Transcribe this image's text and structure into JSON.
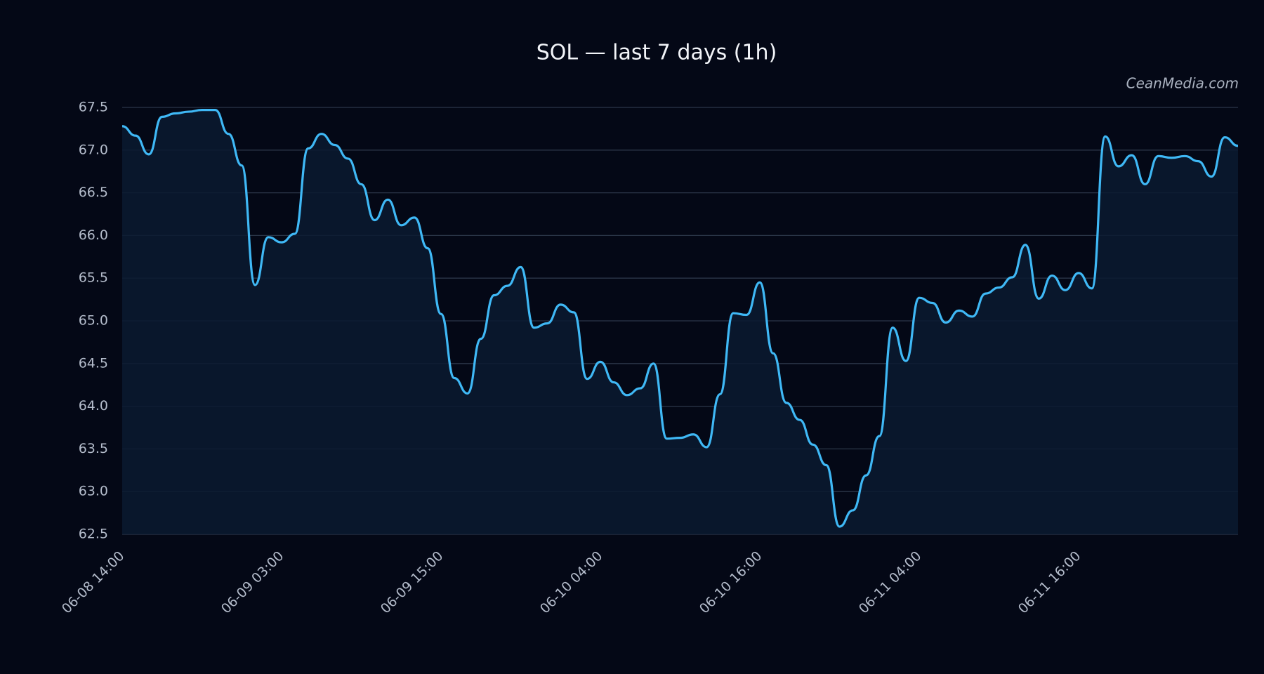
{
  "chart_data": {
    "type": "line",
    "title": "SOL — last 7 days (1h)",
    "watermark": "CeanMedia.com",
    "categories": [
      "06-08 14:00",
      null,
      null,
      null,
      null,
      null,
      null,
      null,
      null,
      null,
      null,
      null,
      "06-09 03:00",
      null,
      null,
      null,
      null,
      null,
      null,
      null,
      null,
      null,
      null,
      null,
      "06-09 15:00",
      null,
      null,
      null,
      null,
      null,
      null,
      null,
      null,
      null,
      null,
      null,
      "06-10 04:00",
      null,
      null,
      null,
      null,
      null,
      null,
      null,
      null,
      null,
      null,
      null,
      "06-10 16:00",
      null,
      null,
      null,
      null,
      null,
      null,
      null,
      null,
      null,
      null,
      null,
      "06-11 04:00",
      null,
      null,
      null,
      null,
      null,
      null,
      null,
      null,
      null,
      null,
      null,
      "06-11 16:00",
      null,
      null,
      null,
      null,
      null,
      null,
      null,
      null,
      null,
      null,
      null,
      null
    ],
    "series": [
      {
        "name": "SOL",
        "color": "#3fb8f5",
        "values": [
          67.28,
          67.17,
          66.95,
          67.39,
          67.43,
          67.45,
          67.47,
          67.47,
          67.19,
          66.82,
          65.42,
          65.98,
          65.92,
          66.02,
          67.02,
          67.19,
          67.06,
          66.9,
          66.6,
          66.18,
          66.42,
          66.12,
          66.21,
          65.85,
          65.08,
          64.33,
          64.15,
          64.79,
          65.3,
          65.41,
          65.63,
          64.92,
          64.97,
          65.19,
          65.1,
          64.32,
          64.52,
          64.28,
          64.13,
          64.21,
          64.5,
          63.62,
          63.63,
          63.67,
          63.52,
          64.14,
          65.09,
          65.07,
          65.45,
          64.62,
          64.04,
          63.84,
          63.55,
          63.31,
          62.59,
          62.78,
          63.19,
          63.65,
          64.92,
          64.53,
          65.27,
          65.21,
          64.98,
          65.12,
          65.05,
          65.32,
          65.39,
          65.51,
          65.89,
          65.26,
          65.53,
          65.36,
          65.56,
          65.38,
          67.16,
          66.81,
          66.94,
          66.6,
          66.93,
          66.91,
          66.93,
          66.87,
          66.69,
          67.15,
          67.05
        ]
      }
    ],
    "ylim": [
      62.5,
      67.5
    ],
    "yticks": [
      62.5,
      {
        "value": 63,
        "label": "63.0"
      },
      63.5,
      {
        "value": 64,
        "label": "64.0"
      },
      64.5,
      {
        "value": 65,
        "label": "65.0"
      },
      65.5,
      {
        "value": 66,
        "label": "66.0"
      },
      66.5,
      {
        "value": 67,
        "label": "67.0"
      },
      67.5
    ],
    "grid": true
  }
}
